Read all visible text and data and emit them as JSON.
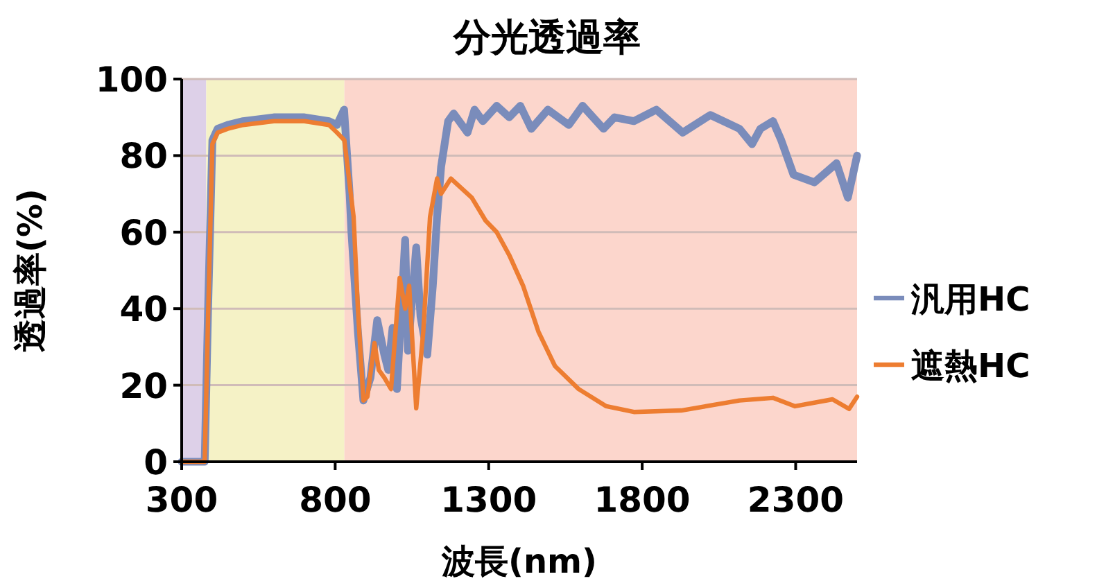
{
  "chart_data": {
    "type": "line",
    "title": "分光透過率",
    "xlabel": "波長(nm)",
    "ylabel": "透過率(%)",
    "xlim": [
      300,
      2500
    ],
    "xticks": [
      300,
      800,
      1300,
      1800,
      2300
    ],
    "ylim": [
      0,
      100
    ],
    "yticks": [
      0,
      20,
      40,
      60,
      80,
      100
    ],
    "grid": "y",
    "legend": "right",
    "line_style": "solid",
    "marker": "none",
    "bands": [
      {
        "axis": "x",
        "from": 300,
        "to": 380,
        "color": "#ddd0e8"
      },
      {
        "axis": "x",
        "from": 380,
        "to": 830,
        "color": "#f5f2c6"
      },
      {
        "axis": "x",
        "from": 830,
        "to": 2500,
        "color": "#fcd6cc"
      }
    ],
    "series": [
      {
        "name": "汎用HC",
        "color": "#7a8cbb",
        "x": [
          300,
          375,
          386,
          400,
          417,
          450,
          500,
          600,
          700,
          780,
          806,
          829,
          847,
          853,
          874,
          892,
          915,
          937,
          960,
          973,
          987,
          1001,
          1028,
          1037,
          1064,
          1078,
          1100,
          1118,
          1132,
          1145,
          1168,
          1186,
          1231,
          1254,
          1281,
          1326,
          1367,
          1403,
          1439,
          1493,
          1561,
          1606,
          1674,
          1710,
          1773,
          1846,
          1932,
          2022,
          2117,
          2158,
          2185,
          2226,
          2253,
          2293,
          2361,
          2433,
          2470,
          2500
        ],
        "values": [
          0,
          0,
          40,
          84,
          87,
          88,
          89,
          90,
          90,
          89,
          88,
          92,
          70,
          60,
          34,
          16,
          22,
          37,
          28,
          24,
          35,
          19,
          58,
          29,
          56,
          38,
          28,
          46,
          64,
          77,
          89,
          91,
          86,
          92,
          89,
          93,
          90,
          93,
          87,
          92,
          88,
          93,
          87,
          90,
          89,
          92,
          86,
          90.6,
          87,
          83,
          87,
          89,
          84,
          75,
          73,
          78,
          69,
          80
        ]
      },
      {
        "name": "遮熱HC",
        "color": "#ed7d31",
        "x": [
          300,
          375,
          386,
          400,
          417,
          450,
          500,
          600,
          700,
          780,
          806,
          830,
          860,
          874,
          892,
          905,
          928,
          942,
          960,
          982,
          1010,
          1028,
          1041,
          1064,
          1087,
          1109,
          1132,
          1145,
          1177,
          1245,
          1290,
          1326,
          1367,
          1412,
          1462,
          1516,
          1593,
          1683,
          1773,
          1927,
          2117,
          2226,
          2298,
          2420,
          2474,
          2500
        ],
        "values": [
          0,
          0,
          38,
          83,
          86,
          87,
          88,
          89,
          89,
          88,
          86,
          84,
          64,
          40,
          16,
          17,
          31,
          24,
          22,
          19,
          48,
          40,
          46,
          14,
          34,
          64,
          74,
          70,
          74,
          69,
          63,
          60,
          54,
          46,
          34,
          25,
          19,
          14.5,
          13,
          13.4,
          16,
          16.7,
          14.5,
          16.3,
          13.8,
          17
        ]
      }
    ]
  }
}
